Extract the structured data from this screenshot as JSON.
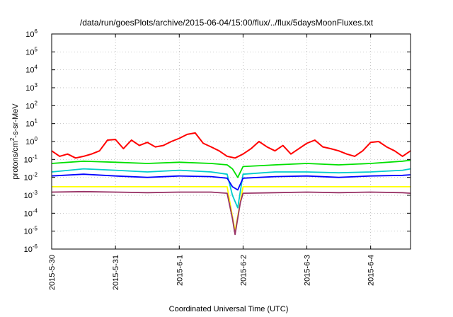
{
  "chart_data": {
    "type": "line",
    "title": "/data/run/goesPlots/archive/2015-06-04/15:00/flux/../flux/5daysMoonFluxes.txt",
    "xlabel": "Coordinated Universal Time (UTC)",
    "ylabel": "protons/cm²-s-sr-MeV",
    "ylabel_parts": {
      "pre": "protons/cm",
      "sup": "2",
      "post": "-s-sr-MeV"
    },
    "y_scale": "log",
    "ylim": [
      1e-06,
      1000000.0
    ],
    "y_ticks": [
      {
        "base": "10",
        "exp": "-6",
        "value": 1e-06
      },
      {
        "base": "10",
        "exp": "-5",
        "value": 1e-05
      },
      {
        "base": "10",
        "exp": "-4",
        "value": 0.0001
      },
      {
        "base": "10",
        "exp": "-3",
        "value": 0.001
      },
      {
        "base": "10",
        "exp": "-2",
        "value": 0.01
      },
      {
        "base": "10",
        "exp": "-1",
        "value": 0.1
      },
      {
        "base": "10",
        "exp": "0",
        "value": 1
      },
      {
        "base": "10",
        "exp": "1",
        "value": 10.0
      },
      {
        "base": "10",
        "exp": "2",
        "value": 100.0
      },
      {
        "base": "10",
        "exp": "3",
        "value": 1000.0
      },
      {
        "base": "10",
        "exp": "4",
        "value": 10000.0
      },
      {
        "base": "10",
        "exp": "5",
        "value": 100000.0
      },
      {
        "base": "10",
        "exp": "6",
        "value": 1000000.0
      }
    ],
    "xlim": [
      "2015-05-30 00:00",
      "2015-06-04 15:00"
    ],
    "x_ticks": [
      {
        "label": "2015-5-30",
        "value": "2015-05-30"
      },
      {
        "label": "2015-5-31",
        "value": "2015-05-31"
      },
      {
        "label": "2015-6-1",
        "value": "2015-06-01"
      },
      {
        "label": "2015-6-2",
        "value": "2015-06-02"
      },
      {
        "label": "2015-6-3",
        "value": "2015-06-03"
      },
      {
        "label": "2015-6-4",
        "value": "2015-06-04"
      }
    ],
    "grid": true,
    "series": [
      {
        "color": "#ff0000",
        "x": [
          "2015-05-30 00:00",
          "2015-05-30 03:00",
          "2015-05-30 06:00",
          "2015-05-30 09:00",
          "2015-05-30 12:00",
          "2015-05-30 15:00",
          "2015-05-30 18:00",
          "2015-05-30 21:00",
          "2015-05-31 00:00",
          "2015-05-31 03:00",
          "2015-05-31 06:00",
          "2015-05-31 09:00",
          "2015-05-31 12:00",
          "2015-05-31 15:00",
          "2015-05-31 18:00",
          "2015-05-31 21:00",
          "2015-06-01 00:00",
          "2015-06-01 03:00",
          "2015-06-01 06:00",
          "2015-06-01 09:00",
          "2015-06-01 12:00",
          "2015-06-01 15:00",
          "2015-06-01 18:00",
          "2015-06-01 21:00",
          "2015-06-02 00:00",
          "2015-06-02 03:00",
          "2015-06-02 06:00",
          "2015-06-02 09:00",
          "2015-06-02 12:00",
          "2015-06-02 15:00",
          "2015-06-02 18:00",
          "2015-06-02 21:00",
          "2015-06-03 00:00",
          "2015-06-03 03:00",
          "2015-06-03 06:00",
          "2015-06-03 09:00",
          "2015-06-03 12:00",
          "2015-06-03 15:00",
          "2015-06-03 18:00",
          "2015-06-03 21:00",
          "2015-06-04 00:00",
          "2015-06-04 03:00",
          "2015-06-04 06:00",
          "2015-06-04 09:00",
          "2015-06-04 12:00",
          "2015-06-04 15:00"
        ],
        "y": [
          0.3,
          0.15,
          0.2,
          0.12,
          0.15,
          0.2,
          0.3,
          1.2,
          1.3,
          0.4,
          1.2,
          0.6,
          0.9,
          0.5,
          0.6,
          1.0,
          1.5,
          2.5,
          3.0,
          0.8,
          0.5,
          0.3,
          0.15,
          0.12,
          0.2,
          0.4,
          1.0,
          0.5,
          0.3,
          0.6,
          0.2,
          0.4,
          0.8,
          1.2,
          0.5,
          0.4,
          0.3,
          0.2,
          0.15,
          0.3,
          0.9,
          1.0,
          0.5,
          0.3,
          0.15,
          0.3
        ]
      },
      {
        "color": "#00e000",
        "x": [
          "2015-05-30 00:00",
          "2015-05-30 12:00",
          "2015-05-31 00:00",
          "2015-05-31 12:00",
          "2015-06-01 00:00",
          "2015-06-01 12:00",
          "2015-06-01 18:00",
          "2015-06-01 20:00",
          "2015-06-01 22:00",
          "2015-06-02 00:00",
          "2015-06-02 12:00",
          "2015-06-03 00:00",
          "2015-06-03 12:00",
          "2015-06-04 00:00",
          "2015-06-04 12:00",
          "2015-06-04 15:00"
        ],
        "y": [
          0.06,
          0.08,
          0.07,
          0.06,
          0.07,
          0.06,
          0.05,
          0.03,
          0.01,
          0.04,
          0.05,
          0.06,
          0.05,
          0.06,
          0.08,
          0.09
        ]
      },
      {
        "color": "#00cccc",
        "x": [
          "2015-05-30 00:00",
          "2015-05-30 12:00",
          "2015-05-31 00:00",
          "2015-05-31 12:00",
          "2015-06-01 00:00",
          "2015-06-01 12:00",
          "2015-06-01 18:00",
          "2015-06-01 20:00",
          "2015-06-01 22:00",
          "2015-06-02 00:00",
          "2015-06-02 12:00",
          "2015-06-03 00:00",
          "2015-06-03 12:00",
          "2015-06-04 00:00",
          "2015-06-04 12:00",
          "2015-06-04 15:00"
        ],
        "y": [
          0.02,
          0.03,
          0.025,
          0.02,
          0.025,
          0.02,
          0.015,
          0.001,
          0.0002,
          0.015,
          0.02,
          0.02,
          0.018,
          0.02,
          0.025,
          0.03
        ]
      },
      {
        "color": "#0000ff",
        "x": [
          "2015-05-30 00:00",
          "2015-05-30 12:00",
          "2015-05-31 00:00",
          "2015-05-31 12:00",
          "2015-06-01 00:00",
          "2015-06-01 12:00",
          "2015-06-01 18:00",
          "2015-06-01 20:00",
          "2015-06-01 22:00",
          "2015-06-02 00:00",
          "2015-06-02 12:00",
          "2015-06-03 00:00",
          "2015-06-03 12:00",
          "2015-06-04 00:00",
          "2015-06-04 12:00",
          "2015-06-04 15:00"
        ],
        "y": [
          0.012,
          0.015,
          0.012,
          0.01,
          0.012,
          0.011,
          0.009,
          0.003,
          0.002,
          0.009,
          0.011,
          0.012,
          0.01,
          0.012,
          0.013,
          0.014
        ]
      },
      {
        "color": "#ffff00",
        "x": [
          "2015-05-30 00:00",
          "2015-06-01 18:00",
          "2015-06-01 21:00",
          "2015-06-02 00:00",
          "2015-06-04 15:00"
        ],
        "y": [
          0.003,
          0.003,
          1e-05,
          0.003,
          0.003
        ]
      },
      {
        "color": "#993366",
        "x": [
          "2015-05-30 00:00",
          "2015-05-30 12:00",
          "2015-05-31 00:00",
          "2015-05-31 12:00",
          "2015-06-01 00:00",
          "2015-06-01 12:00",
          "2015-06-01 18:00",
          "2015-06-01 20:00",
          "2015-06-01 21:00",
          "2015-06-01 23:00",
          "2015-06-02 00:00",
          "2015-06-02 12:00",
          "2015-06-03 00:00",
          "2015-06-03 12:00",
          "2015-06-04 00:00",
          "2015-06-04 12:00",
          "2015-06-04 15:00"
        ],
        "y": [
          0.0015,
          0.0016,
          0.0015,
          0.0014,
          0.0015,
          0.0015,
          0.0013,
          5e-05,
          6.5e-06,
          0.0004,
          0.0013,
          0.0014,
          0.0015,
          0.0014,
          0.0015,
          0.0014,
          0.0013
        ]
      }
    ]
  }
}
